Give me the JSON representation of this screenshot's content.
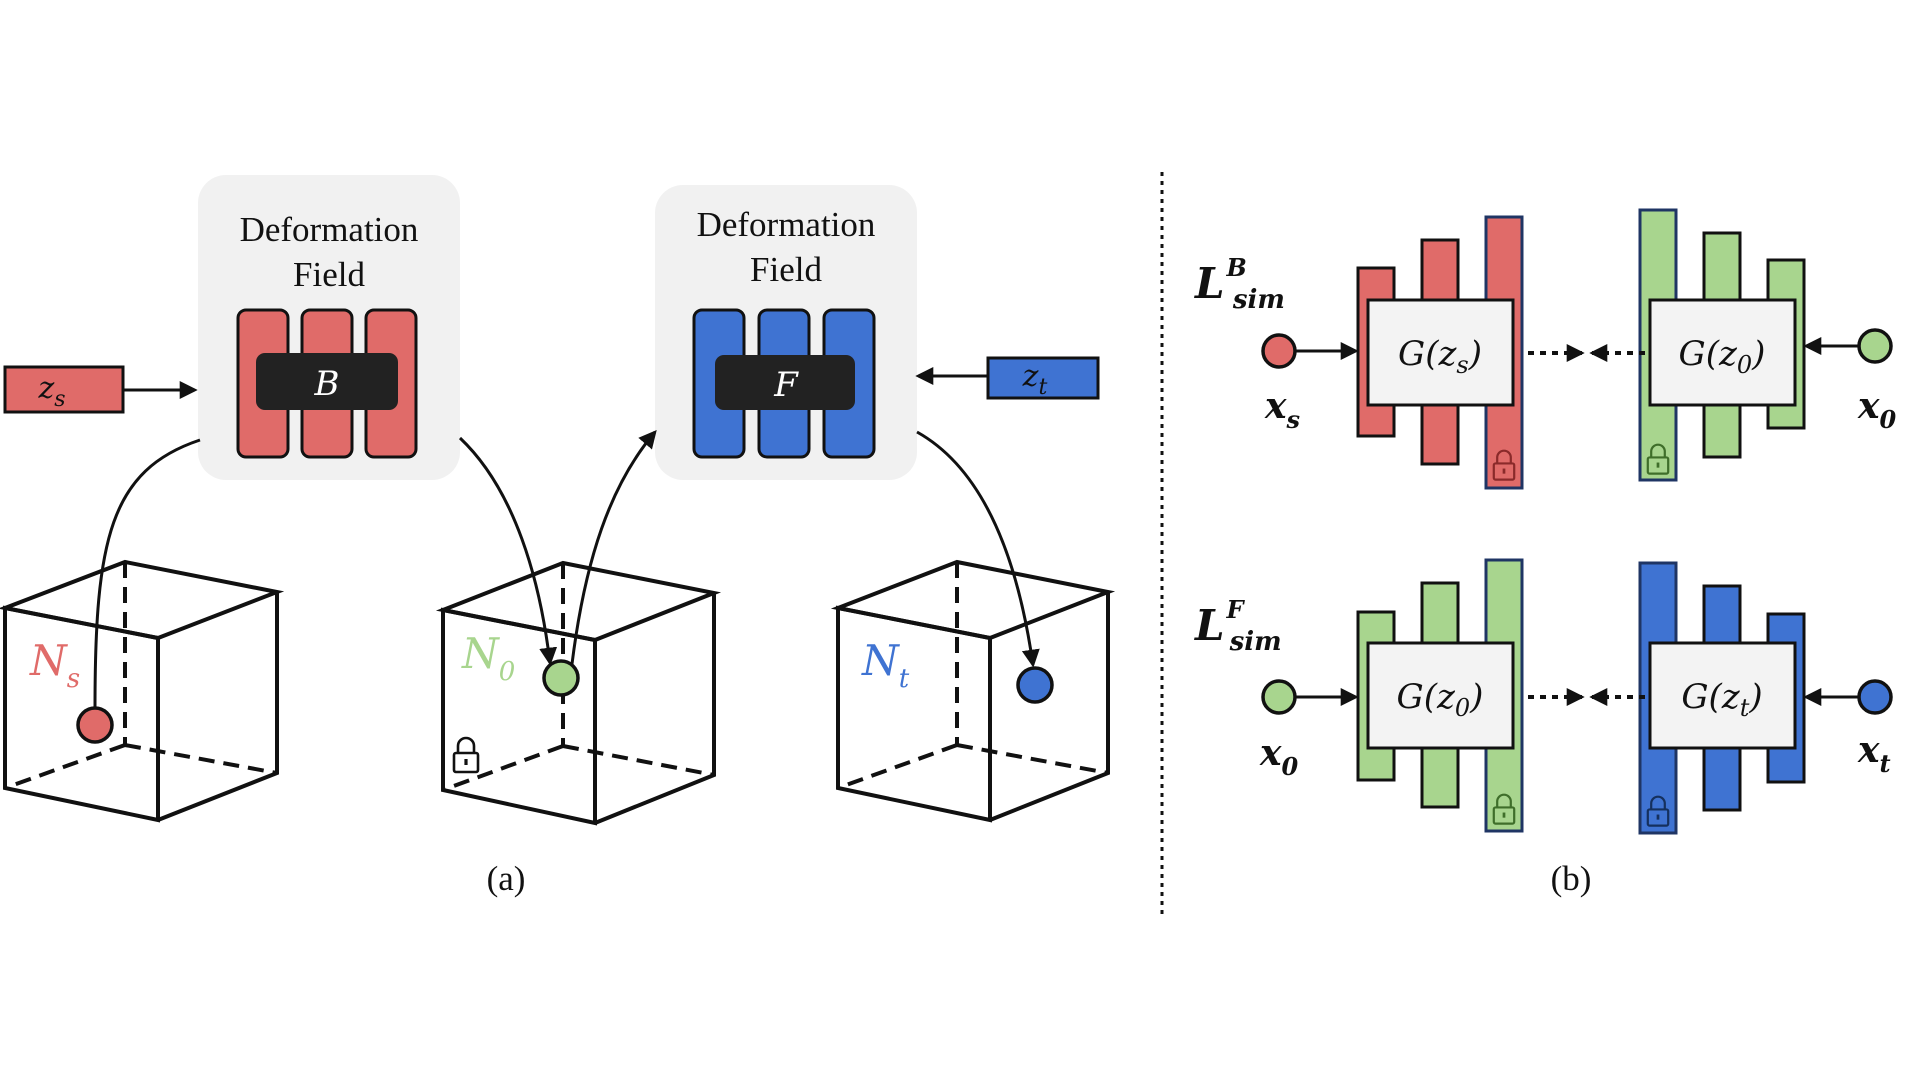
{
  "colors": {
    "red": "#E06B69",
    "green": "#A8D58E",
    "blue": "#3F73D2",
    "stroke": "#111111",
    "panel_bg": "#F1F1F1",
    "lock_border": "#1F3564"
  },
  "panel_a": {
    "caption": "(a)",
    "field_b": {
      "title_line1": "Deformation",
      "title_line2": "Field",
      "label": "B"
    },
    "field_f": {
      "title_line1": "Deformation",
      "title_line2": "Field",
      "label": "F"
    },
    "latent_s": {
      "main": "z",
      "sub": "s"
    },
    "latent_t": {
      "main": "z",
      "sub": "t"
    },
    "space_s": {
      "main": "N",
      "sub": "s"
    },
    "space_0": {
      "main": "N",
      "sub": "0"
    },
    "space_t": {
      "main": "N",
      "sub": "t"
    },
    "lock_icon": "lock-icon"
  },
  "panel_b": {
    "caption": "(b)",
    "loss_b": {
      "main": "L",
      "sup": "B",
      "sub": "sim"
    },
    "loss_f": {
      "main": "L",
      "sup": "F",
      "sub": "sim"
    },
    "row_b": {
      "gen_left": {
        "main": "G(z",
        "sub": "s",
        "close": ")"
      },
      "gen_right": {
        "main": "G(z",
        "sub": "0",
        "close": ")"
      },
      "x_left": {
        "main": "x",
        "sub": "s"
      },
      "x_right": {
        "main": "x",
        "sub": "0"
      }
    },
    "row_f": {
      "gen_left": {
        "main": "G(z",
        "sub": "0",
        "close": ")"
      },
      "gen_right": {
        "main": "G(z",
        "sub": "t",
        "close": ")"
      },
      "x_left": {
        "main": "x",
        "sub": "0"
      },
      "x_right": {
        "main": "x",
        "sub": "t"
      }
    }
  }
}
